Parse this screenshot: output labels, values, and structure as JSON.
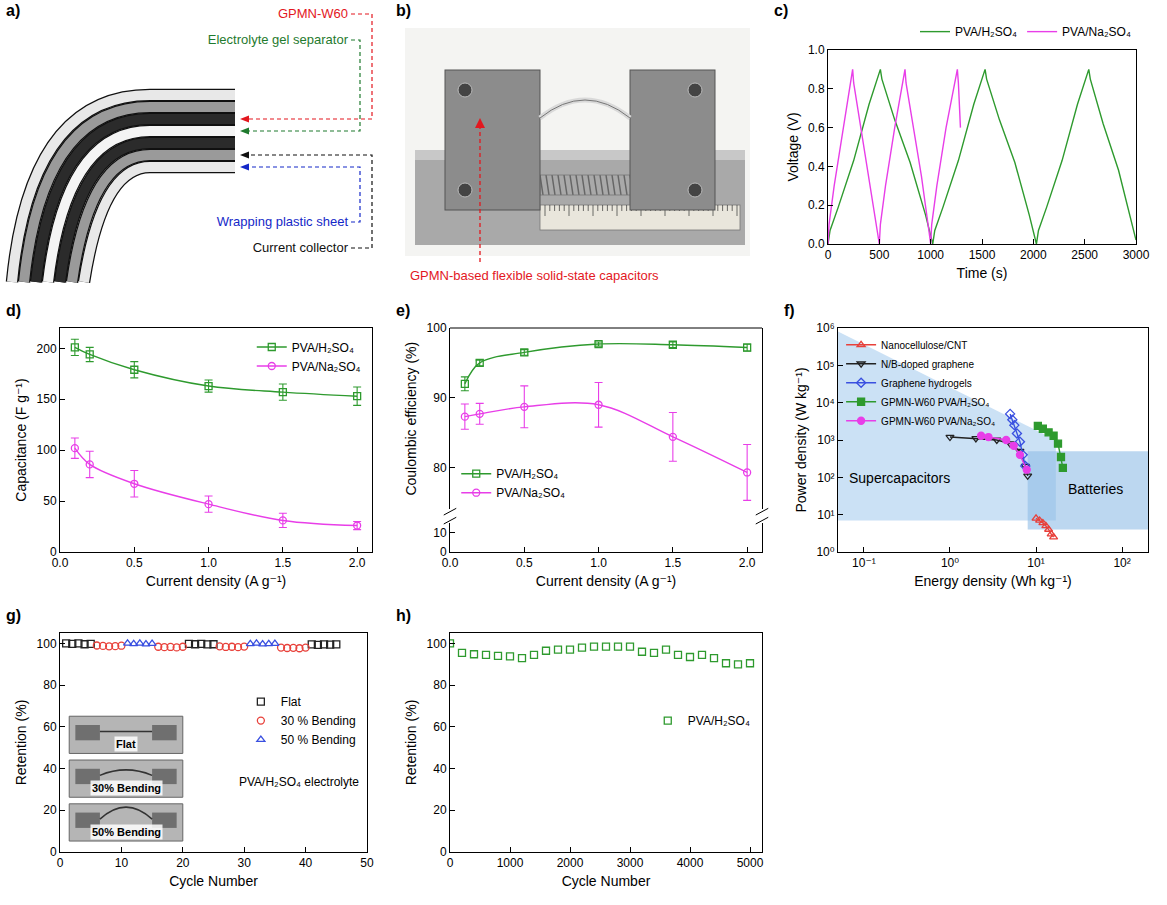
{
  "diagram": {
    "label": "a)",
    "items": [
      {
        "text": "GPMN-W60",
        "color": "#e3171e"
      },
      {
        "text": "Electrolyte gel separator",
        "color": "#1f7a2e"
      },
      {
        "text": "Wrapping plastic sheet",
        "color": "#1428c8"
      },
      {
        "text": "Current collector",
        "color": "#111111"
      }
    ]
  },
  "photo": {
    "label": "b)",
    "caption": "GPMN-based flexible solid-state capacitors",
    "color": "#e3171e"
  },
  "chart_data": [
    {
      "label": "c)",
      "type": "line",
      "xlabel": "Time (s)",
      "ylabel": "Voltage (V)",
      "xlim": [
        0,
        3000
      ],
      "xticks": [
        0,
        500,
        1000,
        1500,
        2000,
        2500,
        3000
      ],
      "ylim": [
        0,
        1
      ],
      "yticks": [
        {
          "value": 0,
          "label": "0.0"
        },
        0.2,
        0.4,
        0.6,
        0.8,
        {
          "value": 1,
          "label": "1.0"
        }
      ],
      "legend": "top",
      "series": [
        {
          "name": "PVA/H₂SO₄",
          "color": "#2e9a2e",
          "marker": "none",
          "line_style": "solid",
          "x": [
            0,
            20,
            100,
            250,
            400,
            510,
            525,
            650,
            800,
            950,
            1020,
            1040,
            1120,
            1270,
            1420,
            1530,
            1545,
            1670,
            1820,
            1960,
            2030,
            2050,
            2130,
            2280,
            2430,
            2540,
            2555,
            2680,
            2830,
            2960,
            3000
          ],
          "values": [
            0,
            0.07,
            0.19,
            0.43,
            0.72,
            0.9,
            0.85,
            0.64,
            0.42,
            0.15,
            0,
            0.07,
            0.19,
            0.43,
            0.72,
            0.9,
            0.85,
            0.64,
            0.42,
            0.15,
            0,
            0.07,
            0.19,
            0.43,
            0.72,
            0.9,
            0.85,
            0.62,
            0.38,
            0.1,
            0.02
          ]
        },
        {
          "name": "PVA/Na₂SO₄",
          "color": "#e83ee8",
          "marker": "none",
          "line_style": "solid",
          "x": [
            0,
            10,
            60,
            150,
            240,
            250,
            320,
            400,
            470,
            500,
            510,
            560,
            650,
            750,
            760,
            830,
            910,
            980,
            1000,
            1010,
            1060,
            1150,
            1260,
            1270,
            1290
          ],
          "values": [
            0,
            0.1,
            0.3,
            0.6,
            0.9,
            0.83,
            0.6,
            0.35,
            0.1,
            0,
            0.1,
            0.3,
            0.6,
            0.9,
            0.83,
            0.6,
            0.35,
            0.08,
            0,
            0.1,
            0.3,
            0.6,
            0.9,
            0.83,
            0.6
          ]
        }
      ]
    },
    {
      "label": "d)",
      "type": "line",
      "xlabel": "Current density (A g⁻¹)",
      "ylabel": "Capacitance (F g⁻¹)",
      "xlim": [
        0,
        2.1
      ],
      "xticks": [
        {
          "value": 0,
          "label": "0.0"
        },
        0.5,
        {
          "value": 1,
          "label": "1.0"
        },
        1.5,
        {
          "value": 2,
          "label": "2.0"
        }
      ],
      "ylim": [
        0,
        220
      ],
      "yticks": [
        0,
        50,
        100,
        150,
        200
      ],
      "legend": "upper right",
      "x": [
        0.1,
        0.2,
        0.5,
        1,
        1.5,
        2
      ],
      "series": [
        {
          "name": "PVA/H₂SO₄",
          "color": "#2e9a2e",
          "marker": "square-open",
          "line_style": "spline",
          "values": [
            201,
            194,
            179,
            163,
            157,
            153
          ],
          "error": [
            8,
            7,
            8,
            6,
            8,
            9
          ]
        },
        {
          "name": "PVA/Na₂SO₄",
          "color": "#e83ee8",
          "marker": "circle-open",
          "line_style": "spline",
          "values": [
            102,
            86,
            67,
            47,
            31,
            26
          ],
          "error": [
            10,
            13,
            13,
            8,
            7,
            4
          ]
        }
      ]
    },
    {
      "label": "e)",
      "type": "line",
      "xlabel": "Current density (A g⁻¹)",
      "ylabel": "Coulombic efficiency (%)",
      "xlim": [
        0,
        2.1
      ],
      "xticks": [
        {
          "value": 0,
          "label": "0.0"
        },
        0.5,
        {
          "value": 1,
          "label": "1.0"
        },
        1.5,
        {
          "value": 2,
          "label": "2.0"
        }
      ],
      "ylim": [
        74,
        100
      ],
      "yticks": [
        80,
        90,
        100
      ],
      "ylim_lower": [
        0,
        15
      ],
      "yticks_lower": [
        0,
        10
      ],
      "legend": "lower left",
      "x": [
        0.1,
        0.2,
        0.5,
        1,
        1.5,
        2
      ],
      "series": [
        {
          "name": "PVA/H₂SO₄",
          "color": "#2e9a2e",
          "marker": "square-open",
          "line_style": "spline",
          "values": [
            92.0,
            95.0,
            96.5,
            97.7,
            97.6,
            97.2
          ],
          "error": [
            1.0,
            0.4,
            0.4,
            0.3,
            0.4,
            0.5
          ]
        },
        {
          "name": "PVA/Na₂SO₄",
          "color": "#e83ee8",
          "marker": "circle-open",
          "line_style": "spline",
          "values": [
            87.3,
            87.7,
            88.7,
            89.0,
            84.4,
            79.3
          ],
          "error": [
            1.8,
            1.5,
            3.0,
            3.2,
            3.5,
            4.0
          ]
        }
      ]
    },
    {
      "label": "f)",
      "type": "line",
      "log": true,
      "xlabel": "Energy density (Wh kg⁻¹)",
      "ylabel": "Power density (W kg⁻¹)",
      "xlim": [
        0.05,
        200
      ],
      "xticks": [
        {
          "value": 0.1,
          "label": "10⁻¹"
        },
        {
          "value": 1,
          "label": "10⁰"
        },
        {
          "value": 10,
          "label": "10¹"
        },
        {
          "value": 100,
          "label": "10²"
        }
      ],
      "ylim": [
        1,
        1000000
      ],
      "yticks": [
        {
          "value": 1,
          "label": "10⁰"
        },
        {
          "value": 10,
          "label": "10¹"
        },
        {
          "value": 100,
          "label": "10²"
        },
        {
          "value": 1000,
          "label": "10³"
        },
        {
          "value": 10000,
          "label": "10⁴"
        },
        {
          "value": 100000,
          "label": "10⁵"
        },
        {
          "value": 1000000,
          "label": "10⁶"
        }
      ],
      "legend": "upper left",
      "regions": [
        {
          "name": "Supercapacitors",
          "color": "#a8cdee",
          "x": [
            0.05,
            0.05,
            17,
            17
          ],
          "y": [
            7,
            800000,
            1000,
            7
          ]
        },
        {
          "name": "Batteries",
          "color": "#8fbde6",
          "x": [
            8,
            200,
            200,
            8
          ],
          "y": [
            4,
            4,
            500,
            500
          ]
        }
      ],
      "series": [
        {
          "name": "Nanocellulose/CNT",
          "color": "#e8403a",
          "marker": "triangle-up-open",
          "line_style": "solid",
          "x": [
            10,
            11,
            12,
            13,
            14,
            15,
            16
          ],
          "values": [
            8,
            7,
            6,
            5,
            4,
            3,
            2.5
          ]
        },
        {
          "name": "N/B-doped graphene",
          "color": "#222222",
          "marker": "triangle-down-open",
          "line_style": "solid",
          "x": [
            1.0,
            2.0,
            3.5,
            5.0,
            6.5,
            7.5,
            8.0
          ],
          "values": [
            1200,
            1100,
            1000,
            800,
            500,
            200,
            110
          ]
        },
        {
          "name": "Graphene hydrogels",
          "color": "#3a50e0",
          "marker": "diamond-open",
          "line_style": "solid",
          "x": [
            5.0,
            5.3,
            5.6,
            6.0,
            6.5,
            7.0,
            7.5
          ],
          "values": [
            5000,
            3500,
            2500,
            1500,
            900,
            400,
            200
          ]
        },
        {
          "name": "GPMN-W60 PVA/H₂SO₄",
          "color": "#2e9a2e",
          "marker": "square",
          "line_style": "solid",
          "x": [
            10.5,
            12,
            14,
            16,
            18,
            19.5,
            20.5
          ],
          "values": [
            2400,
            2000,
            1600,
            1300,
            800,
            350,
            180
          ]
        },
        {
          "name": "GPMN-W60 PVA/Na₂SO₄",
          "color": "#e83ee8",
          "marker": "circle",
          "line_style": "solid",
          "x": [
            2.3,
            2.8,
            4.5,
            5.5,
            6.5,
            7.8
          ],
          "values": [
            1300,
            1200,
            1000,
            700,
            400,
            160
          ]
        }
      ]
    },
    {
      "label": "g)",
      "type": "scatter",
      "xlabel": "Cycle Number",
      "ylabel": "Retention (%)",
      "xlim": [
        0,
        50
      ],
      "xticks": [
        0,
        10,
        20,
        30,
        40,
        50
      ],
      "ylim": [
        0,
        105
      ],
      "yticks": [
        0,
        20,
        40,
        60,
        80,
        100
      ],
      "legend": "right",
      "annotation": "PVA/H₂SO₄ electrolyte",
      "insets": [
        "Flat",
        "30% Bending",
        "50% Bending"
      ],
      "series": [
        {
          "name": "Flat",
          "color": "#222222",
          "marker": "square-open",
          "line_style": "none",
          "x": [
            1,
            2,
            3,
            4,
            5,
            21,
            22,
            23,
            24,
            25,
            41,
            42,
            43,
            44,
            45
          ],
          "values": [
            100,
            99.8,
            100,
            99.6,
            99.8,
            99.8,
            99.6,
            99.8,
            99.5,
            99.6,
            99.5,
            99.3,
            99.5,
            99.4,
            99.5
          ]
        },
        {
          "name": "30 % Bending",
          "color": "#e8403a",
          "marker": "circle-open",
          "line_style": "none",
          "x": [
            6,
            7,
            8,
            9,
            10,
            16,
            17,
            18,
            19,
            20,
            26,
            27,
            28,
            29,
            30,
            36,
            37,
            38,
            39,
            40
          ],
          "values": [
            99,
            98.8,
            98.6,
            98.7,
            98.9,
            98.4,
            98.2,
            98.3,
            98.1,
            98.4,
            98.6,
            98.3,
            98.4,
            98.2,
            98.5,
            98,
            97.8,
            97.9,
            97.7,
            98
          ]
        },
        {
          "name": "50 % Bending",
          "color": "#3a50e0",
          "marker": "triangle-up-open",
          "line_style": "none",
          "x": [
            11,
            12,
            13,
            14,
            15,
            31,
            32,
            33,
            34,
            35
          ],
          "values": [
            100,
            99.8,
            100,
            99.7,
            99.9,
            99.8,
            100,
            99.7,
            99.8,
            99.9
          ]
        }
      ]
    },
    {
      "label": "h)",
      "type": "scatter",
      "xlabel": "Cycle Number",
      "ylabel": "Retention (%)",
      "xlim": [
        0,
        5200
      ],
      "xticks": [
        0,
        1000,
        2000,
        3000,
        4000,
        5000
      ],
      "ylim": [
        0,
        105
      ],
      "yticks": [
        0,
        20,
        40,
        60,
        80,
        100
      ],
      "legend": "right",
      "series": [
        {
          "name": "PVA/H₂SO₄",
          "color": "#2e9a2e",
          "marker": "square-open",
          "line_style": "none",
          "x": [
            0,
            200,
            400,
            600,
            800,
            1000,
            1200,
            1400,
            1600,
            1800,
            2000,
            2200,
            2400,
            2600,
            2800,
            3000,
            3200,
            3400,
            3600,
            3800,
            4000,
            4200,
            4400,
            4600,
            4800,
            5000
          ],
          "values": [
            100,
            95.5,
            94.8,
            94.5,
            94,
            93.8,
            93,
            94.5,
            96.5,
            97,
            97,
            98,
            98.5,
            98.5,
            98.5,
            98.5,
            96,
            95.5,
            97,
            94.5,
            93.5,
            94.5,
            93,
            90.5,
            90,
            90.5
          ]
        }
      ]
    }
  ]
}
